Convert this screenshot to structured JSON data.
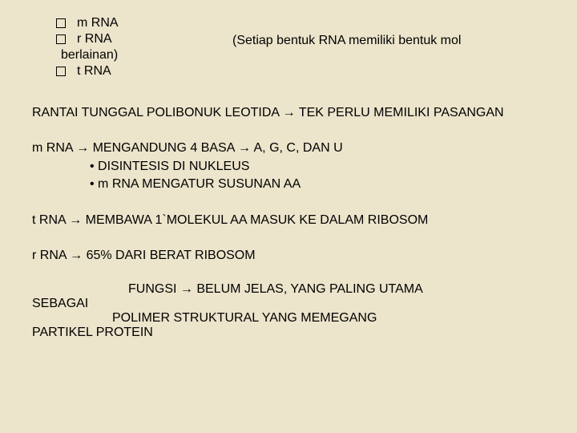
{
  "top": {
    "items": [
      {
        "label": "m RNA",
        "hasCheckbox": true
      },
      {
        "label": "r RNA",
        "hasCheckbox": true
      },
      {
        "label": "berlainan)",
        "hasCheckbox": false
      },
      {
        "label": "t  RNA",
        "hasCheckbox": true
      }
    ],
    "sideNote": "(Setiap bentuk RNA memiliki bentuk mol"
  },
  "para1": "RANTAI TUNGGAL POLIBONUK LEOTIDA → TEK PERLU MEMILIKI PASANGAN",
  "para2": {
    "line1": "m  RNA → MENGANDUNG 4 BASA → A, G, C, DAN U",
    "line2": "DISINTESIS  DI NUKLEUS",
    "line3": "m RNA MENGATUR SUSUNAN AA"
  },
  "para3": "t RNA → MEMBAWA 1`MOLEKUL AA MASUK KE DALAM RIBOSOM",
  "para4": "r RNA → 65% DARI BERAT RIBOSOM",
  "para5": {
    "line1": "FUNGSI → BELUM JELAS, YANG PALING UTAMA",
    "line1b": "SEBAGAI",
    "line2": "POLIMER STRUKTURAL YANG MEMEGANG",
    "line2b": "PARTIKEL PROTEIN"
  }
}
